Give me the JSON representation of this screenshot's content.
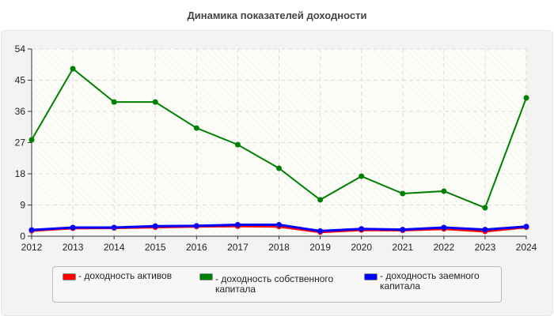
{
  "chart_data": {
    "type": "line",
    "title": "Динамика показателей доходности",
    "x": [
      "2012",
      "2013",
      "2014",
      "2015",
      "2016",
      "2017",
      "2018",
      "2019",
      "2020",
      "2021",
      "2022",
      "2023",
      "2024"
    ],
    "ylim": [
      0,
      54
    ],
    "yticks": [
      0,
      9,
      18,
      27,
      36,
      45,
      54
    ],
    "grid": true,
    "legend_position": "bottom",
    "series": [
      {
        "name": "- доходность активов",
        "color": "#ff0000",
        "values": [
          1.6,
          2.3,
          2.4,
          2.6,
          2.8,
          2.9,
          2.8,
          1.2,
          1.8,
          1.7,
          2.1,
          1.4,
          2.6
        ]
      },
      {
        "name": "- доходность собственного капитала",
        "color": "#008000",
        "values": [
          27.8,
          48.3,
          38.7,
          38.7,
          31.2,
          26.4,
          19.6,
          10.5,
          17.3,
          12.3,
          13.0,
          8.2,
          39.9
        ]
      },
      {
        "name": "- доходность заемного капитала",
        "color": "#0000ff",
        "values": [
          1.8,
          2.5,
          2.5,
          2.9,
          3.0,
          3.3,
          3.3,
          1.5,
          2.1,
          1.9,
          2.5,
          1.9,
          2.8
        ]
      }
    ]
  }
}
